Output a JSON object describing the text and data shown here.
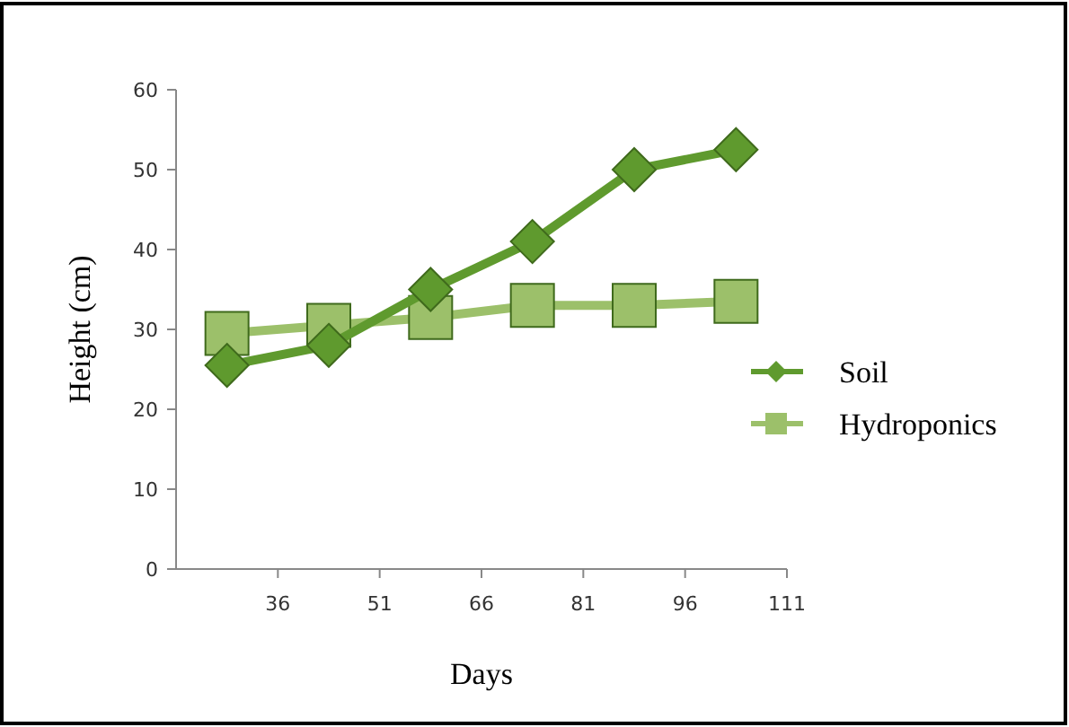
{
  "chart_data": {
    "type": "line",
    "xlabel": "Days",
    "ylabel": "Height (cm)",
    "xlim": [
      21,
      111
    ],
    "xticks": [
      36,
      51,
      66,
      81,
      96,
      111
    ],
    "ylim": [
      0,
      60
    ],
    "yticks": [
      0,
      10,
      20,
      30,
      40,
      50,
      60
    ],
    "x": [
      28.5,
      43.5,
      58.5,
      73.5,
      88.5,
      103.5
    ],
    "series": [
      {
        "name": "Soil",
        "color": "#5f9a2e",
        "marker": "diamond",
        "values": [
          25.5,
          28,
          35,
          41,
          50,
          52.5
        ]
      },
      {
        "name": "Hydroponics",
        "color": "#9cc06a",
        "marker": "square",
        "values": [
          29.5,
          30.5,
          31.5,
          33,
          33,
          33.5
        ]
      }
    ],
    "legend": "right",
    "grid": false
  }
}
